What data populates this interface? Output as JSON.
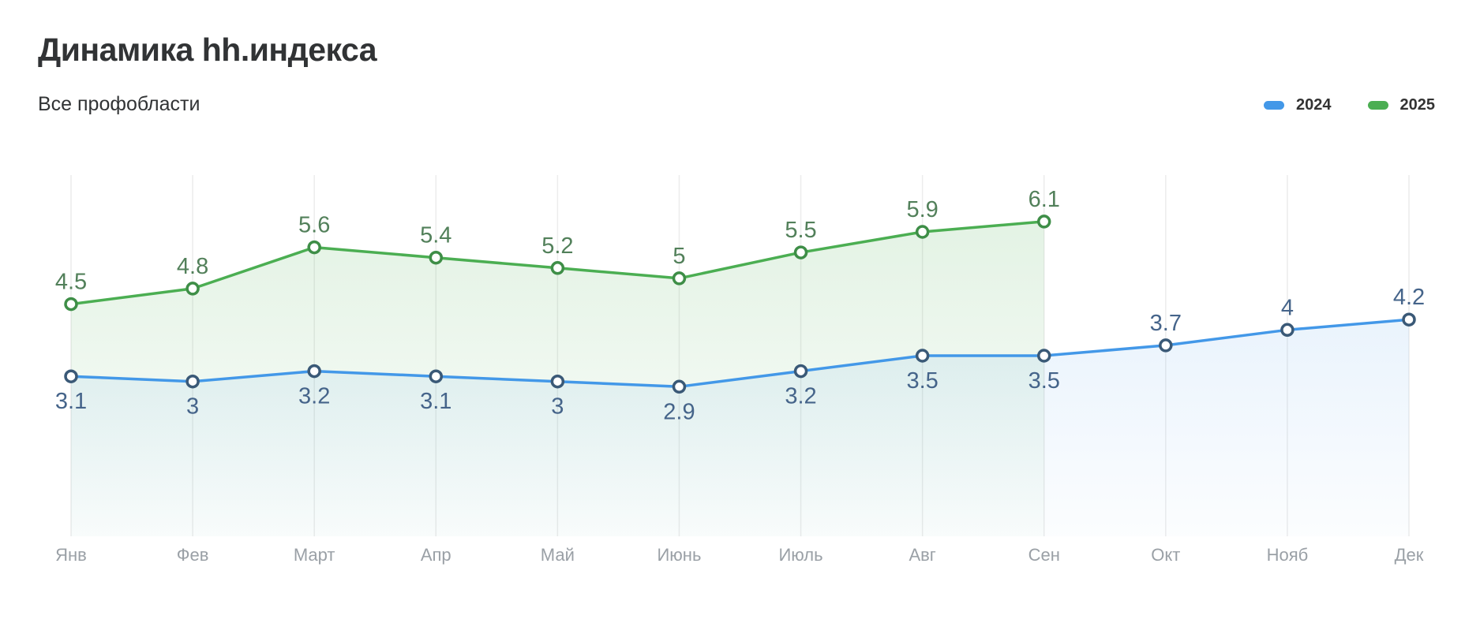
{
  "header": {
    "title": "Динамика hh.индекса",
    "subtitle": "Все профобласти"
  },
  "legend": {
    "items": [
      {
        "label": "2024",
        "color": "#4398e8"
      },
      {
        "label": "2025",
        "color": "#4bae52"
      }
    ]
  },
  "chart_data": {
    "type": "line",
    "title": "Динамика hh.индекса",
    "subtitle": "Все профобласти",
    "categories": [
      "Янв",
      "Фев",
      "Март",
      "Апр",
      "Май",
      "Июнь",
      "Июль",
      "Авг",
      "Сен",
      "Окт",
      "Нояб",
      "Дек"
    ],
    "series": [
      {
        "name": "2024",
        "values": [
          3.1,
          3,
          3.2,
          3.1,
          3,
          2.9,
          3.2,
          3.5,
          3.5,
          3.7,
          4,
          4.2
        ],
        "line_color": "#4398e8",
        "marker_stroke": "#3a5977",
        "label_color": "#45648a",
        "fill_color": "#4398e8",
        "label_positions": [
          "below",
          "below",
          "below",
          "below",
          "below",
          "below",
          "below",
          "below",
          "below",
          "above",
          "above",
          "above"
        ]
      },
      {
        "name": "2025",
        "values": [
          4.5,
          4.8,
          5.6,
          5.4,
          5.2,
          5,
          5.5,
          5.9,
          6.1
        ],
        "line_color": "#4bae52",
        "marker_stroke": "#3e8e47",
        "label_color": "#52805a",
        "fill_color": "#4bae52",
        "label_positions": [
          "above",
          "above",
          "above",
          "above",
          "above",
          "above",
          "above",
          "above",
          "above"
        ]
      }
    ],
    "ylim": [
      0,
      7
    ],
    "grid": "vertical-only",
    "gridline_color": "#ececec",
    "axis_label_color": "#9aa0a6",
    "legend_position": "top-right",
    "xlabel": "",
    "ylabel": ""
  }
}
